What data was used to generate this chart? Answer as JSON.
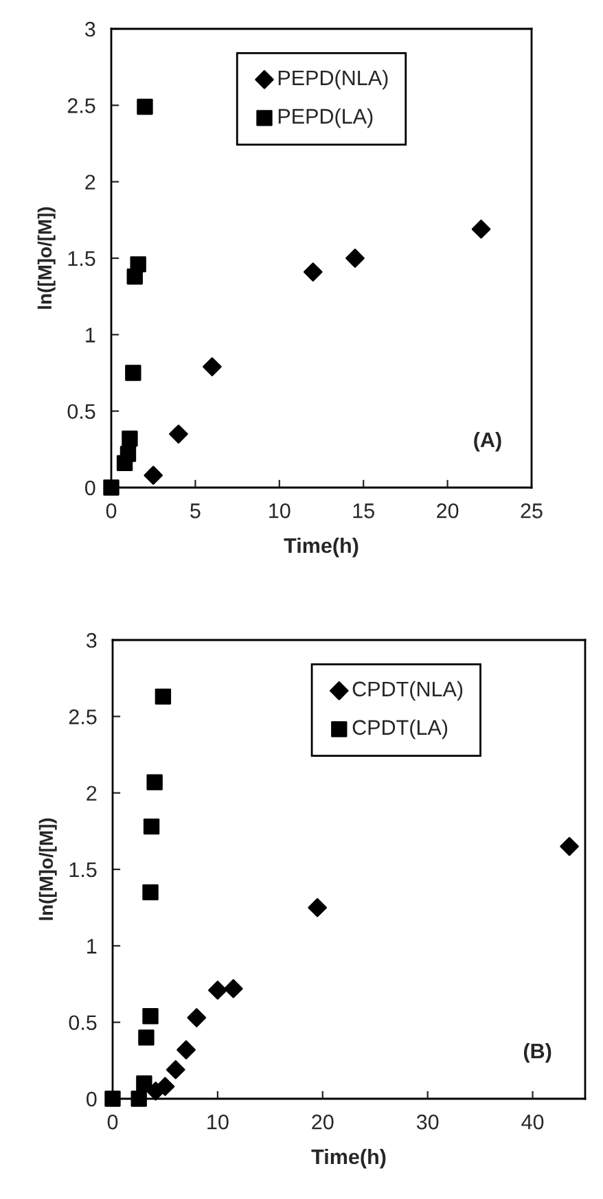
{
  "chart_data": [
    {
      "type": "scatter",
      "xlabel": "Time(h)",
      "ylabel": "ln([M]o/[M])",
      "annotations": [
        "(A)"
      ],
      "xlim": [
        0,
        25
      ],
      "xticks": [
        0,
        5,
        10,
        15,
        20,
        25
      ],
      "ylim": [
        0,
        3
      ],
      "yticks": [
        0,
        0.5,
        1,
        1.5,
        2,
        2.5,
        3
      ],
      "legend": "top",
      "grid": false,
      "series": [
        {
          "name": "PEPD(NLA)",
          "color": "#000000",
          "marker": "diamond",
          "x": [
            2.5,
            4,
            6,
            12,
            14.5,
            22
          ],
          "values": [
            0.08,
            0.35,
            0.79,
            1.41,
            1.5,
            1.69
          ]
        },
        {
          "name": "PEPD(LA)",
          "color": "#000000",
          "marker": "square",
          "x": [
            0,
            0.8,
            1,
            1.1,
            1.3,
            1.4,
            1.6,
            2
          ],
          "values": [
            0,
            0.16,
            0.22,
            0.32,
            0.75,
            1.38,
            1.46,
            2.49
          ]
        }
      ]
    },
    {
      "type": "scatter",
      "xlabel": "Time(h)",
      "ylabel": "ln([M]o/[M])",
      "annotations": [
        "(B)"
      ],
      "xlim": [
        0,
        45
      ],
      "xticks": [
        0,
        10,
        20,
        30,
        40
      ],
      "ylim": [
        0,
        3
      ],
      "yticks": [
        0,
        0.5,
        1,
        1.5,
        2,
        2.5,
        3
      ],
      "legend": "top",
      "grid": false,
      "series": [
        {
          "name": "CPDT(NLA)",
          "color": "#000000",
          "marker": "diamond",
          "x": [
            4.1,
            5,
            6,
            7,
            8,
            10,
            11.5,
            19.5,
            43.5
          ],
          "values": [
            0.05,
            0.08,
            0.19,
            0.32,
            0.53,
            0.71,
            0.72,
            1.25,
            1.65
          ]
        },
        {
          "name": "CPDT(LA)",
          "color": "#000000",
          "marker": "square",
          "x": [
            0,
            2.5,
            3,
            3.2,
            3.6,
            3.6,
            3.7,
            4,
            4.5,
            4.8
          ],
          "values": [
            0,
            0,
            0.1,
            0.4,
            0.54,
            1.35,
            1.78,
            2.07,
            null,
            2.63
          ]
        }
      ]
    }
  ]
}
